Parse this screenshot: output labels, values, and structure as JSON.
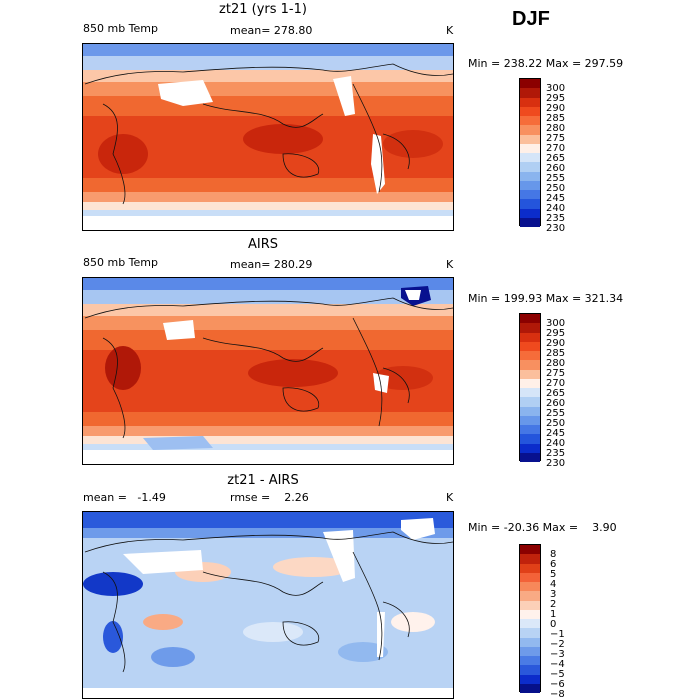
{
  "season": "DJF",
  "panels": [
    {
      "title": "zt21 (yrs 1-1)",
      "left_label": "850 mb Temp",
      "center_label": "mean= 278.80",
      "units": "K",
      "minmax": "Min = 238.22 Max = 297.59",
      "levels": [
        "300",
        "295",
        "290",
        "285",
        "280",
        "275",
        "270",
        "265",
        "260",
        "255",
        "250",
        "245",
        "240",
        "235",
        "230"
      ],
      "colors": [
        "#8b0000",
        "#b01808",
        "#d83010",
        "#ef4a1e",
        "#f66c3a",
        "#f89060",
        "#fbbf9c",
        "#fff0e8",
        "#d5e5f8",
        "#b0cff3",
        "#8ab4ee",
        "#6797ea",
        "#4577e5",
        "#2455dc",
        "#0b2ccb",
        "#08118f"
      ]
    },
    {
      "title": "AIRS",
      "left_label": "850 mb Temp",
      "center_label": "mean= 280.29",
      "units": "K",
      "minmax": "Min = 199.93 Max = 321.34",
      "levels": [
        "300",
        "295",
        "290",
        "285",
        "280",
        "275",
        "270",
        "265",
        "260",
        "255",
        "250",
        "245",
        "240",
        "235",
        "230"
      ],
      "colors": [
        "#8b0000",
        "#b01808",
        "#d83010",
        "#ef4a1e",
        "#f66c3a",
        "#f89060",
        "#fbbf9c",
        "#fff0e8",
        "#d5e5f8",
        "#b0cff3",
        "#8ab4ee",
        "#6797ea",
        "#4577e5",
        "#2455dc",
        "#0b2ccb",
        "#08118f"
      ]
    },
    {
      "title": "zt21 - AIRS",
      "left_label": "mean =   -1.49",
      "center_label": "rmse =    2.26",
      "units": "K",
      "minmax": "Min = -20.36 Max =    3.90",
      "levels": [
        "8",
        "6",
        "5",
        "4",
        "3",
        "2",
        "1",
        "0",
        "−1",
        "−2",
        "−3",
        "−4",
        "−5",
        "−6",
        "−8"
      ],
      "colors": [
        "#8b0000",
        "#c0220c",
        "#e04018",
        "#f36238",
        "#f7885a",
        "#f9aa84",
        "#fcd0b8",
        "#fff2ec",
        "#dbe8f9",
        "#b8d3f4",
        "#92b9ef",
        "#6e9bea",
        "#4a7be5",
        "#2a58db",
        "#0c2ccb",
        "#06108a"
      ]
    }
  ]
}
